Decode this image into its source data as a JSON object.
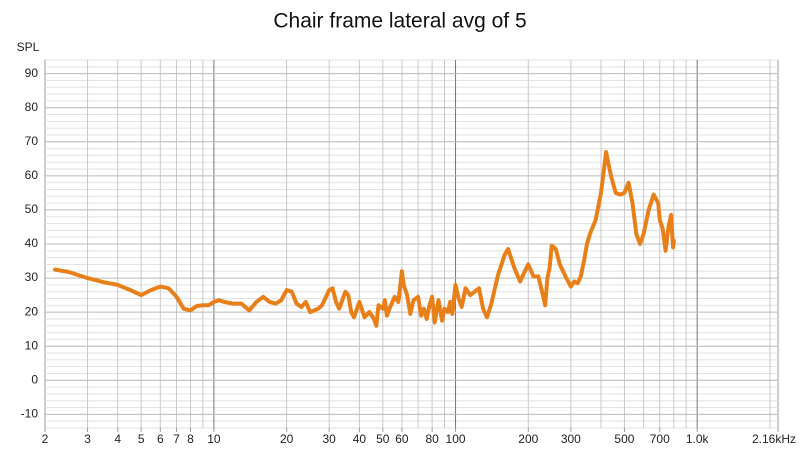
{
  "chart_data": {
    "type": "line",
    "title": "Chair frame lateral avg of 5",
    "y_label": "SPL",
    "log_x": true,
    "grid": true,
    "xlim": [
      2,
      2160
    ],
    "ylim": [
      -14,
      94
    ],
    "xticks": [
      2,
      3,
      4,
      5,
      6,
      7,
      8,
      10,
      20,
      30,
      40,
      50,
      60,
      80,
      100,
      200,
      300,
      500,
      700,
      {
        "value": 1000,
        "label": "1.0k"
      },
      {
        "value": 2160,
        "label": "2.16kHz"
      }
    ],
    "yticks": [
      -10,
      0,
      10,
      20,
      30,
      40,
      50,
      60,
      70,
      80,
      90
    ],
    "series": [
      {
        "name": "Chair frame lateral avg of 5",
        "color": "#e8801a",
        "x": [
          2.2,
          2.5,
          3,
          3.5,
          4,
          4.5,
          5,
          5.5,
          6,
          6.5,
          7,
          7.5,
          8,
          8.5,
          9,
          9.5,
          10,
          10.5,
          11,
          12,
          13,
          14,
          15,
          16,
          17,
          18,
          19,
          20,
          21,
          22,
          23,
          24,
          25,
          27,
          28,
          30,
          31,
          32,
          33,
          35,
          36,
          37,
          38,
          40,
          42,
          44,
          46,
          47,
          48,
          50,
          51,
          52,
          54,
          56,
          58,
          60,
          61,
          63,
          65,
          67,
          70,
          72,
          74,
          76,
          78,
          80,
          82,
          85,
          88,
          90,
          93,
          95,
          97,
          100,
          103,
          106,
          110,
          115,
          120,
          125,
          130,
          135,
          140,
          150,
          160,
          165,
          175,
          185,
          195,
          200,
          210,
          220,
          230,
          235,
          240,
          245,
          250,
          260,
          270,
          285,
          300,
          310,
          320,
          330,
          340,
          350,
          360,
          380,
          400,
          420,
          440,
          460,
          480,
          500,
          520,
          540,
          560,
          580,
          600,
          630,
          660,
          690,
          700,
          720,
          740,
          760,
          780,
          790,
          795,
          800
        ],
        "values": [
          32.5,
          31.8,
          30,
          28.8,
          28,
          26.5,
          25,
          26.5,
          27.5,
          27,
          24.5,
          21,
          20.5,
          21.8,
          22,
          22,
          23,
          23.5,
          23,
          22.5,
          22.5,
          20.5,
          23,
          24.5,
          23,
          22.5,
          23.5,
          26.5,
          26,
          22.5,
          21.5,
          23,
          20,
          21,
          22,
          26.5,
          27,
          23,
          21,
          26,
          25,
          20,
          18.5,
          23,
          18.5,
          20,
          18,
          16,
          22,
          21,
          23.5,
          19,
          22,
          24.5,
          23,
          32,
          28,
          25,
          19.5,
          23.5,
          24.5,
          19,
          21,
          18,
          22,
          24.5,
          17,
          23.5,
          17.5,
          21,
          20,
          23,
          19.5,
          28,
          24,
          21.5,
          27,
          25,
          26,
          27,
          21,
          18.5,
          22,
          31,
          37,
          38.5,
          33,
          29,
          32.5,
          34,
          30.5,
          30.5,
          25,
          22,
          30,
          33,
          39.5,
          38.5,
          34,
          30.5,
          27.5,
          29,
          28.5,
          30.5,
          35,
          40,
          43,
          47,
          55,
          67,
          60,
          55,
          54.5,
          55,
          58,
          52,
          43,
          40,
          43,
          50,
          54.5,
          52,
          47,
          44.5,
          38,
          45,
          48.5,
          42,
          39,
          41
        ]
      }
    ]
  }
}
